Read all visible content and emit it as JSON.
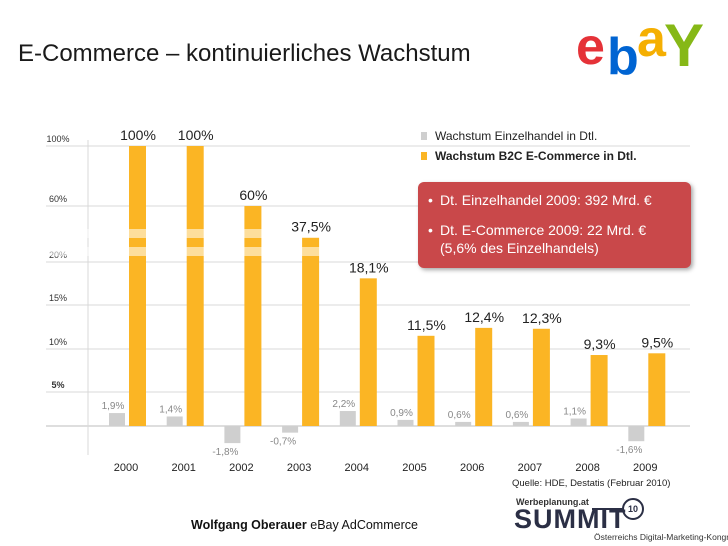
{
  "title": "E-Commerce – kontinuierliches Wachstum",
  "logo_icon": "ebay-logo",
  "logo_letters": [
    "e",
    "b",
    "a",
    "Y"
  ],
  "logo_colors": [
    "#e53238",
    "#0064d2",
    "#f5af02",
    "#86b817"
  ],
  "chart_data": {
    "type": "bar",
    "categories": [
      "2000",
      "2001",
      "2002",
      "2003",
      "2004",
      "2005",
      "2006",
      "2007",
      "2008",
      "2009"
    ],
    "y_tick_labels": [
      "100%",
      "60%",
      "20%",
      "15%",
      "10%",
      "5%"
    ],
    "y_tick_values": [
      100,
      60,
      20,
      15,
      10,
      5
    ],
    "y_scale": "broken",
    "series": [
      {
        "name": "Wachstum Einzelhandel in Dtl.",
        "color": "#cfcfcf",
        "values": [
          1.9,
          1.4,
          -1.8,
          -0.7,
          2.2,
          0.9,
          0.6,
          0.6,
          1.1,
          -1.6
        ],
        "labels": [
          "1,9%",
          "1,4%",
          "-1,8%",
          "-0,7%",
          "2,2%",
          "0,9%",
          "0,6%",
          "0,6%",
          "1,1%",
          "-1,6%"
        ]
      },
      {
        "name": "Wachstum B2C E-Commerce in Dtl.",
        "color": "#fbb524",
        "values": [
          100,
          100,
          60,
          37.5,
          18.1,
          11.5,
          12.4,
          12.3,
          9.3,
          9.5
        ],
        "labels": [
          "100%",
          "100%",
          "60%",
          "37,5%",
          "18,1%",
          "11,5%",
          "12,4%",
          "12,3%",
          "9,3%",
          "9,5%"
        ]
      }
    ],
    "legend_position": "top-right",
    "grid": true
  },
  "notes": [
    "Dt. Einzelhandel 2009: 392 Mrd. €",
    "Dt. E-Commerce 2009: 22 Mrd. €",
    "(5,6% des Einzelhandels)"
  ],
  "source": "Quelle: HDE, Destatis (Februar 2010)",
  "author_name": "Wolfgang Oberauer",
  "author_company": "eBay AdCommerce",
  "summit": {
    "small_label": "Werbeplanung.at",
    "word": "SUMMIT",
    "badge": "10",
    "subtitle": "Österreichs Digital-Marketing-Kongress"
  }
}
